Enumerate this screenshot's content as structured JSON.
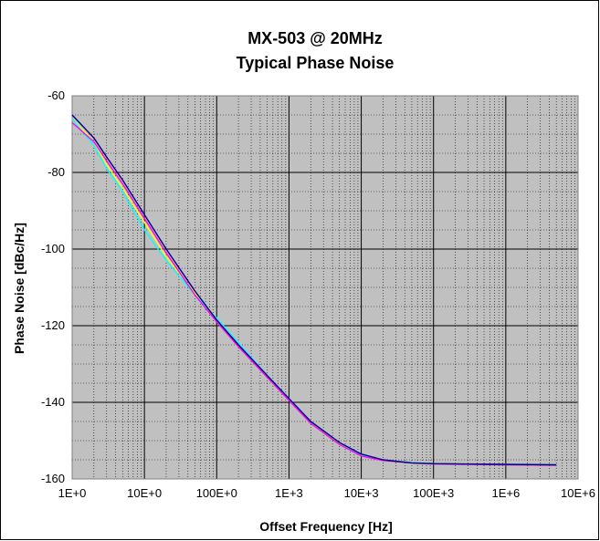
{
  "chart_data": {
    "type": "line",
    "title": "MX-503 @ 20MHz",
    "subtitle": "Typical Phase Noise",
    "xlabel": "Offset Frequency [Hz]",
    "ylabel": "Phase Noise [dBc/Hz]",
    "x_scale": "log",
    "xlim": [
      1,
      10000000
    ],
    "ylim": [
      -160,
      -60
    ],
    "x_ticks": [
      1,
      10,
      100,
      1000,
      10000,
      100000,
      1000000,
      10000000
    ],
    "x_tick_labels": [
      "1E+0",
      "10E+0",
      "100E+0",
      "1E+3",
      "10E+3",
      "100E+3",
      "1E+6",
      "10E+6"
    ],
    "y_ticks": [
      -160,
      -140,
      -120,
      -100,
      -80,
      -60
    ],
    "y_tick_labels": [
      "-160",
      "-140",
      "-120",
      "-100",
      "-80",
      "-60"
    ],
    "grid": true,
    "plot_background": "#c0c0c0",
    "legend": "none",
    "series": [
      {
        "color": "#000080",
        "x": [
          1,
          2,
          3,
          5,
          10,
          20,
          50,
          100,
          200,
          500,
          1000,
          2000,
          5000,
          10000,
          20000,
          50000,
          100000,
          1000000,
          5000000
        ],
        "y": [
          -65,
          -71,
          -76,
          -82,
          -91,
          -100,
          -111,
          -118.5,
          -125,
          -133,
          -139,
          -145,
          -150.5,
          -153.5,
          -155,
          -155.8,
          -156,
          -156.2,
          -156.3
        ]
      },
      {
        "color": "#ff00ff",
        "x": [
          1,
          2,
          3,
          5,
          10,
          20,
          50,
          100,
          200,
          500,
          1000,
          2000,
          5000,
          10000,
          20000,
          50000,
          100000,
          1000000,
          5000000
        ],
        "y": [
          -67,
          -72,
          -77,
          -83,
          -92,
          -101,
          -112,
          -119,
          -125.5,
          -133.5,
          -139.5,
          -145.5,
          -151,
          -154,
          -155.2,
          -155.8,
          -156.1,
          -156.3,
          -156.4
        ]
      },
      {
        "color": "#00ffff",
        "x": [
          1,
          2,
          3,
          5,
          10,
          20,
          50,
          100,
          200,
          500,
          1000,
          2000,
          5000,
          10000,
          20000,
          50000,
          100000,
          1000000,
          5000000
        ],
        "y": [
          -66,
          -73,
          -79,
          -85,
          -95,
          -103,
          -112,
          -118,
          -124.5,
          -133,
          -139,
          -145,
          -150.5,
          -153.8,
          -155.1,
          -155.7,
          -156,
          -156.2,
          -156.3
        ]
      },
      {
        "color": "#ffff00",
        "x": [
          1,
          2,
          3,
          5,
          10,
          20,
          50,
          100,
          200,
          500,
          1000,
          2000,
          5000,
          10000,
          20000,
          50000,
          100000,
          1000000,
          5000000
        ],
        "y": [
          -66,
          -72,
          -78,
          -84,
          -93,
          -102,
          -111.5,
          -118,
          -124.8,
          -133.2,
          -139.2,
          -145.2,
          -150.8,
          -153.9,
          -155.1,
          -155.8,
          -156,
          -156.2,
          -156.3
        ]
      }
    ]
  }
}
